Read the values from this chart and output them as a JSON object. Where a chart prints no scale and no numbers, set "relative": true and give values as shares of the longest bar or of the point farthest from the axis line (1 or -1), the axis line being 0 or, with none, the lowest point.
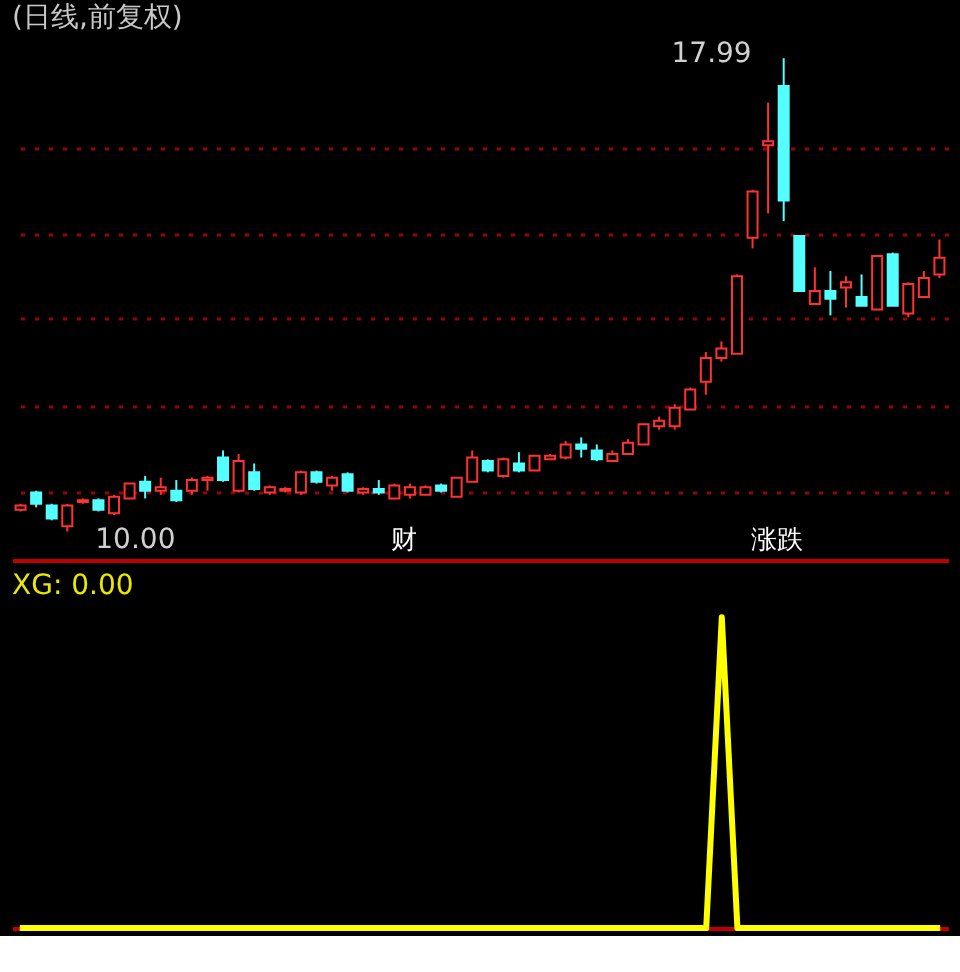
{
  "chart_data": [
    {
      "type": "candlestick",
      "title": "(日线,前复权)",
      "categories": [
        null,
        null,
        null,
        null,
        null,
        null,
        null,
        null,
        null,
        null,
        null,
        null,
        null,
        null,
        null,
        null,
        null,
        null,
        null,
        null,
        null,
        null,
        null,
        null,
        null,
        null,
        null,
        null,
        null,
        null,
        null,
        null,
        null,
        null,
        null,
        null,
        null,
        null,
        null,
        null,
        null,
        null,
        null,
        null,
        null,
        null,
        null,
        null,
        null,
        null,
        null,
        null,
        null,
        null,
        null,
        null,
        null,
        null,
        null,
        null
      ],
      "ohlc": [
        [
          10.37,
          10.47,
          10.34,
          10.44
        ],
        [
          10.66,
          10.69,
          10.41,
          10.47
        ],
        [
          10.44,
          10.47,
          10.19,
          10.22
        ],
        [
          10.09,
          10.47,
          10.0,
          10.44
        ],
        [
          10.5,
          10.56,
          10.47,
          10.53
        ],
        [
          10.53,
          10.56,
          10.34,
          10.37
        ],
        [
          10.31,
          10.62,
          10.28,
          10.59
        ],
        [
          10.56,
          10.81,
          10.56,
          10.81
        ],
        [
          10.84,
          10.94,
          10.56,
          10.69
        ],
        [
          10.69,
          10.91,
          10.62,
          10.75
        ],
        [
          10.69,
          10.87,
          10.5,
          10.53
        ],
        [
          10.69,
          10.91,
          10.62,
          10.87
        ],
        [
          10.87,
          10.94,
          10.69,
          10.91
        ],
        [
          11.25,
          11.37,
          10.84,
          10.87
        ],
        [
          10.69,
          11.31,
          10.66,
          11.19
        ],
        [
          11.0,
          11.15,
          10.69,
          10.72
        ],
        [
          10.66,
          10.78,
          10.62,
          10.75
        ],
        [
          10.69,
          10.75,
          10.66,
          10.72
        ],
        [
          10.66,
          11.03,
          10.62,
          11.0
        ],
        [
          11.0,
          11.03,
          10.81,
          10.84
        ],
        [
          10.78,
          10.94,
          10.69,
          10.91
        ],
        [
          10.97,
          11.0,
          10.66,
          10.69
        ],
        [
          10.66,
          10.75,
          10.62,
          10.72
        ],
        [
          10.72,
          10.87,
          10.62,
          10.66
        ],
        [
          10.56,
          10.81,
          10.56,
          10.78
        ],
        [
          10.62,
          10.81,
          10.56,
          10.75
        ],
        [
          10.62,
          10.78,
          10.62,
          10.75
        ],
        [
          10.78,
          10.81,
          10.66,
          10.69
        ],
        [
          10.59,
          10.91,
          10.59,
          10.91
        ],
        [
          10.84,
          11.37,
          10.84,
          11.25
        ],
        [
          11.19,
          11.22,
          11.0,
          11.03
        ],
        [
          10.94,
          11.25,
          10.91,
          11.22
        ],
        [
          11.15,
          11.34,
          11.0,
          11.03
        ],
        [
          11.03,
          11.28,
          11.03,
          11.28
        ],
        [
          11.22,
          11.31,
          11.22,
          11.28
        ],
        [
          11.25,
          11.53,
          11.22,
          11.47
        ],
        [
          11.47,
          11.59,
          11.25,
          11.4
        ],
        [
          11.37,
          11.47,
          11.19,
          11.22
        ],
        [
          11.19,
          11.37,
          11.19,
          11.31
        ],
        [
          11.31,
          11.56,
          11.31,
          11.5
        ],
        [
          11.47,
          11.81,
          11.47,
          11.81
        ],
        [
          11.78,
          11.94,
          11.72,
          11.87
        ],
        [
          11.78,
          12.15,
          11.72,
          12.09
        ],
        [
          12.06,
          12.43,
          12.06,
          12.4
        ],
        [
          12.53,
          13.03,
          12.31,
          12.93
        ],
        [
          12.93,
          13.21,
          12.87,
          13.09
        ],
        [
          13.0,
          14.34,
          13.0,
          14.31
        ],
        [
          14.96,
          15.77,
          14.78,
          15.74
        ],
        [
          16.52,
          17.24,
          15.37,
          16.59
        ],
        [
          17.52,
          17.99,
          15.24,
          15.59
        ],
        [
          14.99,
          14.99,
          14.06,
          14.06
        ],
        [
          13.84,
          14.46,
          13.84,
          14.06
        ],
        [
          14.06,
          14.4,
          13.65,
          13.93
        ],
        [
          14.12,
          14.31,
          13.78,
          14.21
        ],
        [
          13.96,
          14.34,
          13.81,
          13.81
        ],
        [
          13.75,
          14.65,
          13.75,
          14.65
        ],
        [
          14.68,
          14.71,
          13.81,
          13.81
        ],
        [
          13.68,
          14.21,
          13.62,
          14.18
        ],
        [
          13.96,
          14.4,
          13.96,
          14.28
        ],
        [
          14.34,
          14.93,
          14.28,
          14.62
        ]
      ],
      "colors": [
        "#ff3232",
        "#54ffff",
        "#54ffff",
        "#ff3232",
        "#ff3232",
        "#54ffff",
        "#ff3232",
        "#ff3232",
        "#54ffff",
        "#ff3232",
        "#54ffff",
        "#ff3232",
        "#ff3232",
        "#54ffff",
        "#ff3232",
        "#54ffff",
        "#ff3232",
        "#ff3232",
        "#ff3232",
        "#54ffff",
        "#ff3232",
        "#54ffff",
        "#ff3232",
        "#54ffff",
        "#ff3232",
        "#ff3232",
        "#ff3232",
        "#54ffff",
        "#ff3232",
        "#ff3232",
        "#54ffff",
        "#ff3232",
        "#54ffff",
        "#ff3232",
        "#ff3232",
        "#ff3232",
        "#54ffff",
        "#54ffff",
        "#ff3232",
        "#ff3232",
        "#ff3232",
        "#ff3232",
        "#ff3232",
        "#ff3232",
        "#ff3232",
        "#ff3232",
        "#ff3232",
        "#ff3232",
        "#ff3232",
        "#54ffff",
        "#54ffff",
        "#ff3232",
        "#54ffff",
        "#ff3232",
        "#54ffff",
        "#ff3232",
        "#54ffff",
        "#ff3232",
        "#ff3232",
        "#ff3232"
      ],
      "yticks": [
        {
          "value": 10.66,
          "label": null
        },
        {
          "value": 12.12,
          "label": null
        },
        {
          "value": 13.59,
          "label": null
        },
        {
          "value": 15.02,
          "label": null
        },
        {
          "value": 16.46,
          "label": null
        }
      ],
      "grid": "y",
      "tick_labels": false,
      "annotations": [
        "17.99",
        "10.00",
        "财",
        "涨跌"
      ]
    },
    {
      "type": "line",
      "title": "XG: 0.00",
      "relative": true,
      "tick_labels": false,
      "categories": [
        null,
        null,
        null,
        null,
        null,
        null,
        null,
        null,
        null,
        null,
        null,
        null,
        null,
        null,
        null,
        null,
        null,
        null,
        null,
        null,
        null,
        null,
        null,
        null,
        null,
        null,
        null,
        null,
        null,
        null,
        null,
        null,
        null,
        null,
        null,
        null,
        null,
        null,
        null,
        null,
        null,
        null,
        null,
        null,
        null,
        null,
        null,
        null,
        null,
        null,
        null,
        null,
        null,
        null,
        null,
        null,
        null,
        null,
        null,
        null
      ],
      "series": [
        {
          "color": "#ffff00",
          "values": [
            0,
            0,
            0,
            0,
            0,
            0,
            0,
            0,
            0,
            0,
            0,
            0,
            0,
            0,
            0,
            0,
            0,
            0,
            0,
            0,
            0,
            0,
            0,
            0,
            0,
            0,
            0,
            0,
            0,
            0,
            0,
            0,
            0,
            0,
            0,
            0,
            0,
            0,
            0,
            0,
            0,
            0,
            0,
            0,
            0,
            1,
            0,
            0,
            0,
            0,
            0,
            0,
            0,
            0,
            0,
            0,
            0,
            0,
            0,
            0
          ]
        }
      ]
    }
  ]
}
